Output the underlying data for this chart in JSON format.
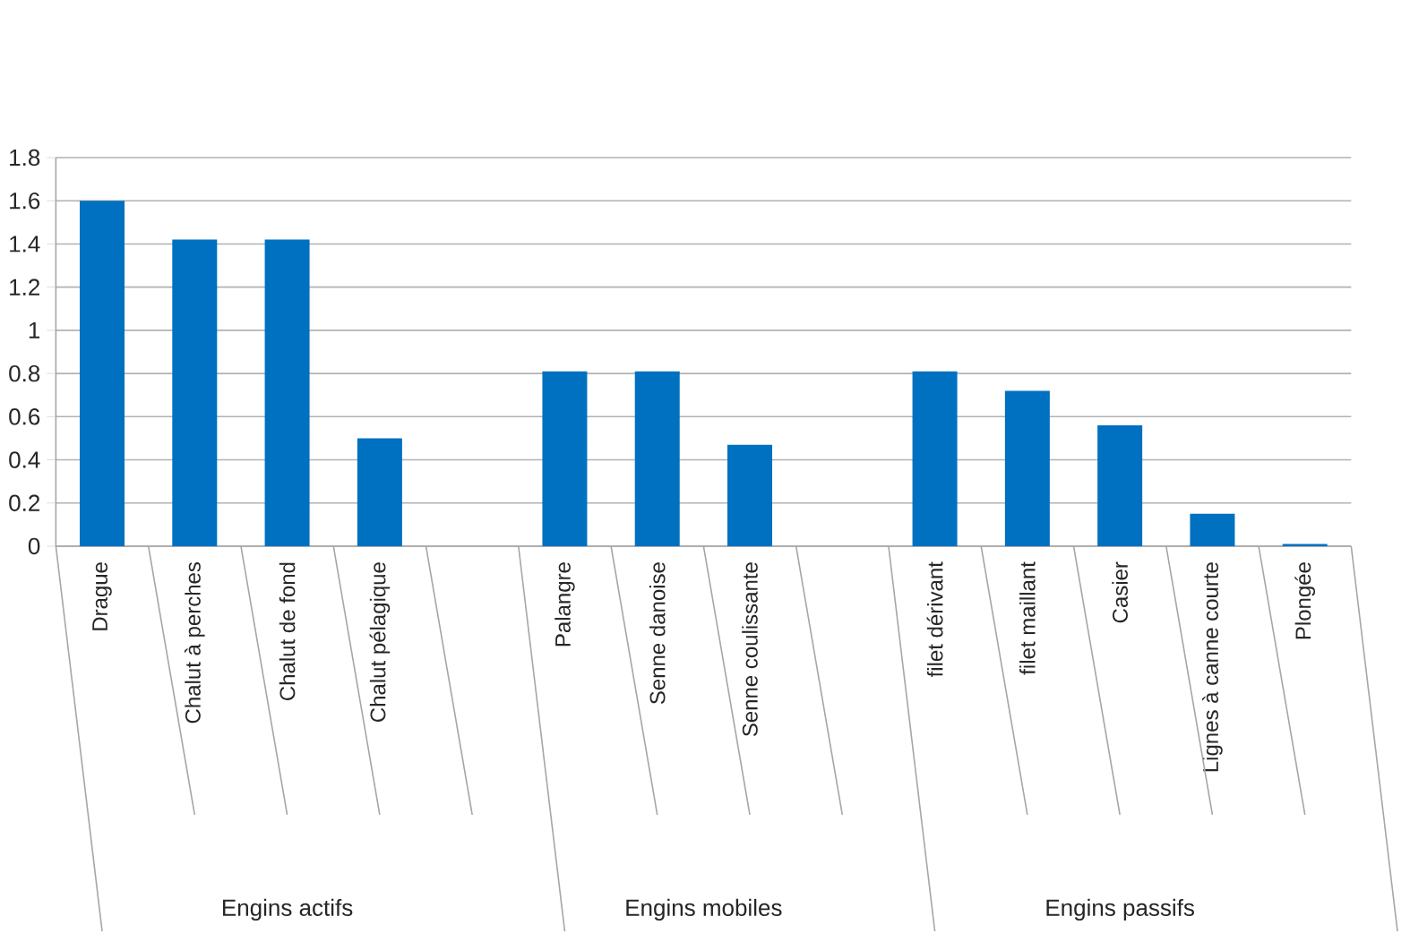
{
  "chart_data": {
    "type": "bar",
    "categories": [
      "Drague",
      "Chalut à perches",
      "Chalut de fond",
      "Chalut pélagique",
      null,
      "Palangre",
      "Senne danoise",
      "Senne coulissante",
      null,
      "filet dérivant",
      "filet maillant",
      "Casier",
      "Lignes à canne courte",
      "Plongée"
    ],
    "values": [
      1.6,
      1.42,
      1.42,
      0.5,
      null,
      0.81,
      0.81,
      0.47,
      null,
      0.81,
      0.72,
      0.56,
      0.15,
      0.01
    ],
    "color": "#0070c0",
    "ylim": [
      0,
      1.8
    ],
    "yticks": [
      0,
      0.2,
      0.4,
      0.6,
      0.8,
      1,
      1.2,
      1.4,
      1.6,
      1.8
    ],
    "grid": "y",
    "annotations": [
      "Engins actifs",
      "Engins mobiles",
      "Engins passifs"
    ]
  }
}
